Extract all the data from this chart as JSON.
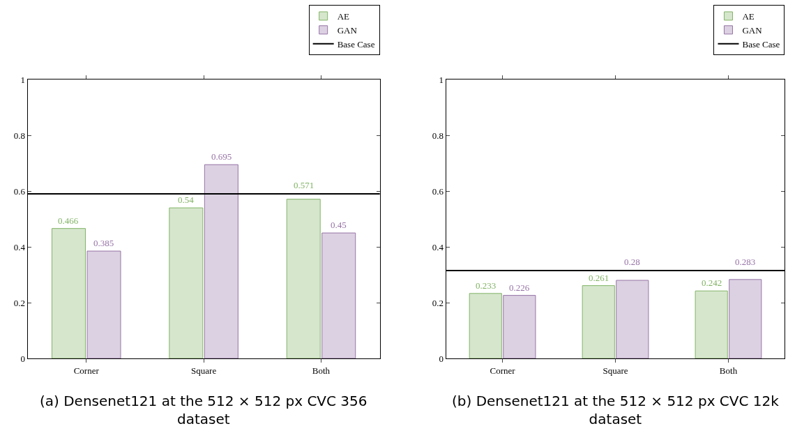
{
  "chart_data": [
    {
      "type": "bar",
      "title": "(a) Densenet121 at the 512 × 512 px CVC 356 dataset",
      "categories": [
        "Corner",
        "Square",
        "Both"
      ],
      "series": [
        {
          "name": "AE",
          "color": "#82b366",
          "values": [
            0.466,
            0.54,
            0.571
          ]
        },
        {
          "name": "GAN",
          "color": "#9673a6",
          "values": [
            0.385,
            0.695,
            0.45
          ]
        }
      ],
      "ref_lines": [
        {
          "axis": "y",
          "value": 0.59,
          "label": "Base Case",
          "color": "#000000"
        }
      ],
      "ylim": [
        0,
        1
      ],
      "yticks": [
        0,
        0.2,
        0.4,
        0.6,
        0.8,
        1
      ],
      "data_labels": true,
      "legend": "top right"
    },
    {
      "type": "bar",
      "title": "(b) Densenet121 at the 512 × 512 px CVC 12k dataset",
      "categories": [
        "Corner",
        "Square",
        "Both"
      ],
      "series": [
        {
          "name": "AE",
          "color": "#82b366",
          "values": [
            0.233,
            0.261,
            0.242
          ]
        },
        {
          "name": "GAN",
          "color": "#9673a6",
          "values": [
            0.226,
            0.28,
            0.283
          ]
        }
      ],
      "ref_lines": [
        {
          "axis": "y",
          "value": 0.315,
          "label": "Base Case",
          "color": "#000000"
        }
      ],
      "ylim": [
        0,
        1
      ],
      "yticks": [
        0,
        0.2,
        0.4,
        0.6,
        0.8,
        1
      ],
      "data_labels": true,
      "legend": "top right"
    }
  ]
}
